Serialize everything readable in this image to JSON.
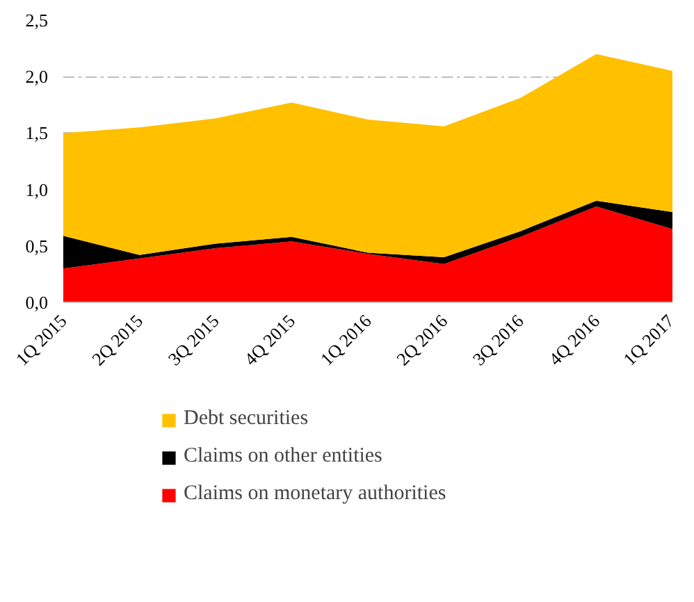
{
  "chart_data": {
    "type": "area",
    "stacked": true,
    "categories": [
      "1Q 2015",
      "2Q 2015",
      "3Q 2015",
      "4Q 2015",
      "1Q 2016",
      "2Q 2016",
      "3Q 2016",
      "4Q 2016",
      "1Q 2017"
    ],
    "series": [
      {
        "name": "Claims on monetary authorities",
        "color": "#ff0000",
        "values": [
          0.3,
          0.39,
          0.48,
          0.54,
          0.43,
          0.34,
          0.58,
          0.85,
          0.65
        ]
      },
      {
        "name": "Claims on other entities",
        "color": "#000000",
        "values": [
          0.29,
          0.03,
          0.04,
          0.04,
          0.01,
          0.06,
          0.05,
          0.05,
          0.15
        ]
      },
      {
        "name": "Debt securities",
        "color": "#ffc000",
        "values": [
          0.91,
          1.13,
          1.11,
          1.19,
          1.18,
          1.16,
          1.18,
          1.3,
          1.25
        ]
      }
    ],
    "ylim": [
      0,
      2.5
    ],
    "yticks": [
      {
        "value": 0,
        "label": "0,0"
      },
      {
        "value": 0.5,
        "label": "0,5"
      },
      {
        "value": 1,
        "label": "1,0"
      },
      {
        "value": 1.5,
        "label": "1,5"
      },
      {
        "value": 2,
        "label": "2,0"
      },
      {
        "value": 2.5,
        "label": "2,5"
      }
    ],
    "grid": "y",
    "legend": "bottom"
  }
}
